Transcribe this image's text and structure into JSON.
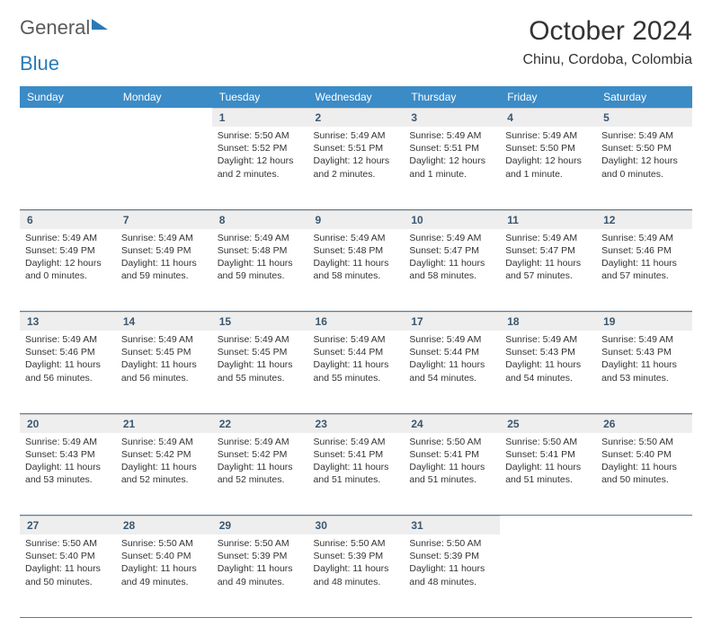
{
  "logo": {
    "part1": "General",
    "part2": "Blue"
  },
  "title": "October 2024",
  "location": "Chinu, Cordoba, Colombia",
  "colors": {
    "header_bg": "#3b8bc6",
    "header_text": "#ffffff",
    "daynum_bg": "#eeeeee",
    "daynum_text": "#3a5770",
    "row_border": "#5b7a9a",
    "body_text": "#333333",
    "logo_gray": "#5a5a5a",
    "logo_blue": "#2a7ab8"
  },
  "weekdays": [
    "Sunday",
    "Monday",
    "Tuesday",
    "Wednesday",
    "Thursday",
    "Friday",
    "Saturday"
  ],
  "weeks": [
    [
      null,
      null,
      {
        "n": "1",
        "sunrise": "5:50 AM",
        "sunset": "5:52 PM",
        "daylight": "12 hours and 2 minutes."
      },
      {
        "n": "2",
        "sunrise": "5:49 AM",
        "sunset": "5:51 PM",
        "daylight": "12 hours and 2 minutes."
      },
      {
        "n": "3",
        "sunrise": "5:49 AM",
        "sunset": "5:51 PM",
        "daylight": "12 hours and 1 minute."
      },
      {
        "n": "4",
        "sunrise": "5:49 AM",
        "sunset": "5:50 PM",
        "daylight": "12 hours and 1 minute."
      },
      {
        "n": "5",
        "sunrise": "5:49 AM",
        "sunset": "5:50 PM",
        "daylight": "12 hours and 0 minutes."
      }
    ],
    [
      {
        "n": "6",
        "sunrise": "5:49 AM",
        "sunset": "5:49 PM",
        "daylight": "12 hours and 0 minutes."
      },
      {
        "n": "7",
        "sunrise": "5:49 AM",
        "sunset": "5:49 PM",
        "daylight": "11 hours and 59 minutes."
      },
      {
        "n": "8",
        "sunrise": "5:49 AM",
        "sunset": "5:48 PM",
        "daylight": "11 hours and 59 minutes."
      },
      {
        "n": "9",
        "sunrise": "5:49 AM",
        "sunset": "5:48 PM",
        "daylight": "11 hours and 58 minutes."
      },
      {
        "n": "10",
        "sunrise": "5:49 AM",
        "sunset": "5:47 PM",
        "daylight": "11 hours and 58 minutes."
      },
      {
        "n": "11",
        "sunrise": "5:49 AM",
        "sunset": "5:47 PM",
        "daylight": "11 hours and 57 minutes."
      },
      {
        "n": "12",
        "sunrise": "5:49 AM",
        "sunset": "5:46 PM",
        "daylight": "11 hours and 57 minutes."
      }
    ],
    [
      {
        "n": "13",
        "sunrise": "5:49 AM",
        "sunset": "5:46 PM",
        "daylight": "11 hours and 56 minutes."
      },
      {
        "n": "14",
        "sunrise": "5:49 AM",
        "sunset": "5:45 PM",
        "daylight": "11 hours and 56 minutes."
      },
      {
        "n": "15",
        "sunrise": "5:49 AM",
        "sunset": "5:45 PM",
        "daylight": "11 hours and 55 minutes."
      },
      {
        "n": "16",
        "sunrise": "5:49 AM",
        "sunset": "5:44 PM",
        "daylight": "11 hours and 55 minutes."
      },
      {
        "n": "17",
        "sunrise": "5:49 AM",
        "sunset": "5:44 PM",
        "daylight": "11 hours and 54 minutes."
      },
      {
        "n": "18",
        "sunrise": "5:49 AM",
        "sunset": "5:43 PM",
        "daylight": "11 hours and 54 minutes."
      },
      {
        "n": "19",
        "sunrise": "5:49 AM",
        "sunset": "5:43 PM",
        "daylight": "11 hours and 53 minutes."
      }
    ],
    [
      {
        "n": "20",
        "sunrise": "5:49 AM",
        "sunset": "5:43 PM",
        "daylight": "11 hours and 53 minutes."
      },
      {
        "n": "21",
        "sunrise": "5:49 AM",
        "sunset": "5:42 PM",
        "daylight": "11 hours and 52 minutes."
      },
      {
        "n": "22",
        "sunrise": "5:49 AM",
        "sunset": "5:42 PM",
        "daylight": "11 hours and 52 minutes."
      },
      {
        "n": "23",
        "sunrise": "5:49 AM",
        "sunset": "5:41 PM",
        "daylight": "11 hours and 51 minutes."
      },
      {
        "n": "24",
        "sunrise": "5:50 AM",
        "sunset": "5:41 PM",
        "daylight": "11 hours and 51 minutes."
      },
      {
        "n": "25",
        "sunrise": "5:50 AM",
        "sunset": "5:41 PM",
        "daylight": "11 hours and 51 minutes."
      },
      {
        "n": "26",
        "sunrise": "5:50 AM",
        "sunset": "5:40 PM",
        "daylight": "11 hours and 50 minutes."
      }
    ],
    [
      {
        "n": "27",
        "sunrise": "5:50 AM",
        "sunset": "5:40 PM",
        "daylight": "11 hours and 50 minutes."
      },
      {
        "n": "28",
        "sunrise": "5:50 AM",
        "sunset": "5:40 PM",
        "daylight": "11 hours and 49 minutes."
      },
      {
        "n": "29",
        "sunrise": "5:50 AM",
        "sunset": "5:39 PM",
        "daylight": "11 hours and 49 minutes."
      },
      {
        "n": "30",
        "sunrise": "5:50 AM",
        "sunset": "5:39 PM",
        "daylight": "11 hours and 48 minutes."
      },
      {
        "n": "31",
        "sunrise": "5:50 AM",
        "sunset": "5:39 PM",
        "daylight": "11 hours and 48 minutes."
      },
      null,
      null
    ]
  ]
}
